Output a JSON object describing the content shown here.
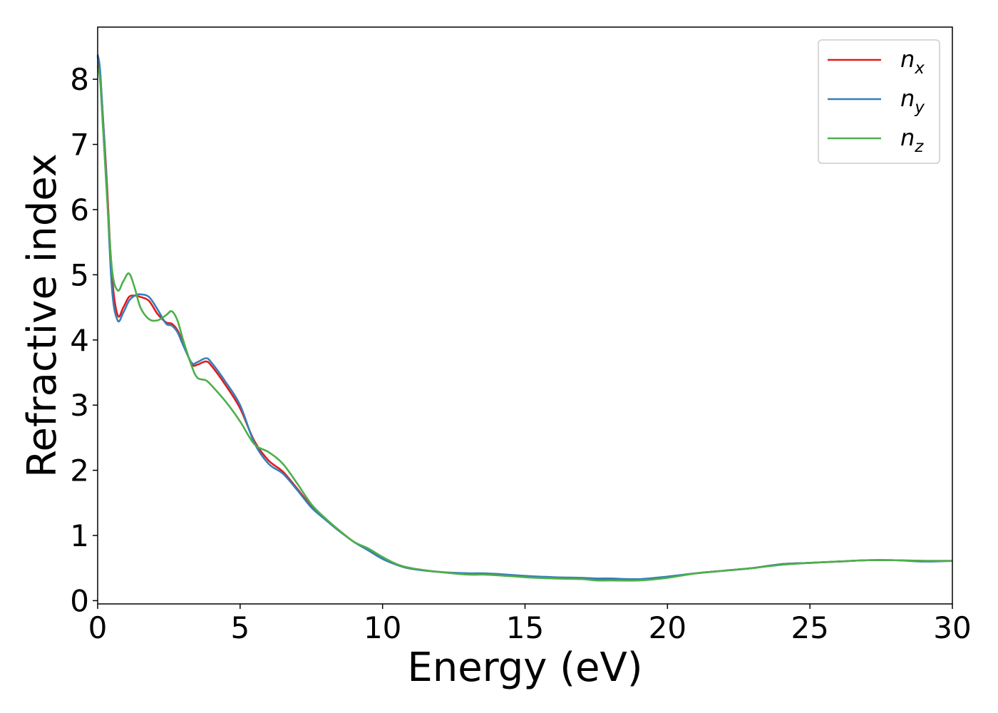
{
  "chart_data": {
    "type": "line",
    "xlabel": "Energy (eV)",
    "ylabel": "Refractive index",
    "xlim": [
      0,
      30
    ],
    "ylim": [
      -0.05,
      8.8
    ],
    "xticks": [
      0,
      5,
      10,
      15,
      20,
      25,
      30
    ],
    "yticks": [
      0,
      1,
      2,
      3,
      4,
      5,
      6,
      7,
      8
    ],
    "grid": false,
    "legend_position": "top-right",
    "series": [
      {
        "name": "n",
        "subscript": "x",
        "color": "#e41a1c",
        "x": [
          0,
          0.1,
          0.3,
          0.5,
          0.7,
          0.9,
          1.1,
          1.3,
          1.5,
          1.8,
          2.1,
          2.4,
          2.6,
          2.8,
          3.0,
          3.3,
          3.5,
          3.8,
          4.0,
          4.5,
          5.0,
          5.5,
          6.0,
          6.5,
          7.0,
          7.5,
          8.0,
          8.5,
          9.0,
          9.5,
          10.0,
          10.5,
          11.0,
          12.0,
          13.0,
          13.5,
          14.0,
          15.0,
          16.0,
          17.0,
          17.5,
          18.0,
          19.0,
          20.0,
          21.0,
          22.0,
          23.0,
          24.0,
          25.0,
          26.0,
          27.0,
          28.0,
          29.0,
          30.0
        ],
        "y": [
          8.35,
          8.0,
          6.6,
          5.0,
          4.38,
          4.5,
          4.66,
          4.68,
          4.66,
          4.6,
          4.4,
          4.27,
          4.25,
          4.15,
          3.95,
          3.63,
          3.62,
          3.67,
          3.6,
          3.3,
          2.95,
          2.45,
          2.15,
          1.98,
          1.72,
          1.45,
          1.25,
          1.07,
          0.9,
          0.78,
          0.65,
          0.55,
          0.49,
          0.44,
          0.41,
          0.41,
          0.4,
          0.37,
          0.35,
          0.34,
          0.33,
          0.33,
          0.32,
          0.36,
          0.42,
          0.46,
          0.5,
          0.56,
          0.58,
          0.6,
          0.62,
          0.62,
          0.61,
          0.61
        ]
      },
      {
        "name": "n",
        "subscript": "y",
        "color": "#377eb8",
        "x": [
          0,
          0.1,
          0.3,
          0.5,
          0.7,
          0.9,
          1.1,
          1.3,
          1.5,
          1.8,
          2.1,
          2.4,
          2.6,
          2.8,
          3.0,
          3.3,
          3.5,
          3.8,
          4.0,
          4.5,
          5.0,
          5.5,
          6.0,
          6.5,
          7.0,
          7.5,
          8.0,
          8.5,
          9.0,
          9.5,
          10.0,
          10.5,
          11.0,
          12.0,
          13.0,
          13.5,
          14.0,
          15.0,
          16.0,
          17.0,
          17.5,
          18.0,
          19.0,
          20.0,
          21.0,
          22.0,
          23.0,
          24.0,
          25.0,
          26.0,
          27.0,
          28.0,
          29.0,
          30.0
        ],
        "y": [
          8.38,
          8.05,
          6.5,
          4.8,
          4.3,
          4.42,
          4.6,
          4.68,
          4.7,
          4.66,
          4.47,
          4.25,
          4.22,
          4.12,
          3.92,
          3.65,
          3.66,
          3.72,
          3.65,
          3.35,
          3.0,
          2.42,
          2.1,
          1.95,
          1.7,
          1.43,
          1.24,
          1.06,
          0.9,
          0.77,
          0.64,
          0.55,
          0.49,
          0.44,
          0.42,
          0.42,
          0.41,
          0.38,
          0.36,
          0.35,
          0.34,
          0.34,
          0.33,
          0.37,
          0.42,
          0.46,
          0.5,
          0.56,
          0.58,
          0.6,
          0.62,
          0.62,
          0.6,
          0.61
        ]
      },
      {
        "name": "n",
        "subscript": "z",
        "color": "#4daf4a",
        "x": [
          0,
          0.1,
          0.3,
          0.5,
          0.7,
          0.9,
          1.1,
          1.3,
          1.5,
          1.8,
          2.1,
          2.4,
          2.6,
          2.8,
          3.0,
          3.3,
          3.5,
          3.8,
          4.0,
          4.5,
          5.0,
          5.5,
          6.0,
          6.5,
          7.0,
          7.5,
          8.0,
          8.5,
          9.0,
          9.5,
          10.0,
          10.5,
          11.0,
          12.0,
          13.0,
          13.5,
          14.0,
          15.0,
          16.0,
          17.0,
          17.5,
          18.0,
          19.0,
          20.0,
          21.0,
          22.0,
          23.0,
          24.0,
          25.0,
          26.0,
          27.0,
          28.0,
          29.0,
          30.0
        ],
        "y": [
          8.2,
          7.9,
          6.4,
          5.1,
          4.76,
          4.9,
          5.02,
          4.8,
          4.5,
          4.32,
          4.3,
          4.38,
          4.44,
          4.3,
          4.0,
          3.6,
          3.42,
          3.38,
          3.3,
          3.05,
          2.75,
          2.4,
          2.28,
          2.1,
          1.8,
          1.48,
          1.26,
          1.07,
          0.9,
          0.8,
          0.67,
          0.56,
          0.5,
          0.44,
          0.4,
          0.4,
          0.39,
          0.36,
          0.34,
          0.33,
          0.31,
          0.31,
          0.31,
          0.35,
          0.42,
          0.46,
          0.5,
          0.55,
          0.58,
          0.6,
          0.62,
          0.62,
          0.61,
          0.61
        ]
      }
    ]
  }
}
